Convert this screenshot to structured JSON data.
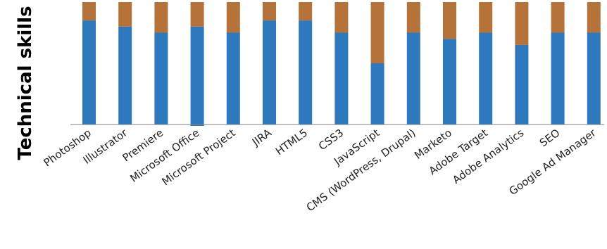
{
  "chart_data": {
    "type": "bar",
    "stacked": true,
    "title": "",
    "xlabel": "",
    "ylabel": "Technical skills",
    "ylim": [
      0,
      100
    ],
    "grid": false,
    "legend": "none",
    "categories": [
      "Photoshop",
      "Illustrator",
      "Premiere",
      "Microsoft Office",
      "Microsoft Project",
      "JIRA",
      "HTML5",
      "CSS3",
      "JavaScript",
      "CMS (WordPress, Drupal)",
      "Marketo",
      "Adobe Target",
      "Adobe Analytics",
      "SEO",
      "Google Ad Manager"
    ],
    "series": [
      {
        "values": [
          85,
          80,
          75,
          80,
          75,
          85,
          85,
          75,
          50,
          75,
          70,
          75,
          65,
          75,
          75
        ],
        "color": "#2e79bd"
      },
      {
        "values": [
          15,
          20,
          25,
          20,
          25,
          15,
          15,
          25,
          50,
          25,
          30,
          25,
          35,
          25,
          25
        ],
        "color": "#b5733a"
      }
    ],
    "notes": "Microsoft Office top segment is slightly shorter and its blue segment extends slightly below the axis."
  }
}
